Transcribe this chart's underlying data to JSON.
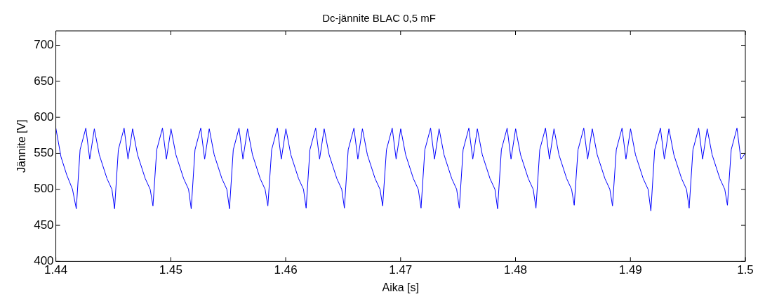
{
  "chart_data": {
    "type": "line",
    "title": "Dc-jännite BLAC 0,5 mF",
    "xlabel": "Aika [s]",
    "ylabel": "Jännite [V]",
    "xlim": [
      1.44,
      1.5
    ],
    "xticks": [
      1.44,
      1.45,
      1.46,
      1.47,
      1.48,
      1.49,
      1.5
    ],
    "ylim": [
      400,
      720
    ],
    "yticks": [
      400,
      450,
      500,
      550,
      600,
      650,
      700
    ],
    "grid": false,
    "legend": false,
    "marker": "none",
    "line_style": "solid",
    "series": [
      {
        "color": "#0000ff",
        "x": [
          1.44,
          1.44045,
          1.44095,
          1.44145,
          1.44178,
          1.44211,
          1.44261,
          1.44295,
          1.44335,
          1.44378,
          1.44445,
          1.44488,
          1.44511,
          1.44544,
          1.44594,
          1.44628,
          1.44668,
          1.44711,
          1.44778,
          1.44821,
          1.44845,
          1.44878,
          1.44928,
          1.44962,
          1.45002,
          1.45045,
          1.45112,
          1.45155,
          1.45178,
          1.45211,
          1.45261,
          1.45295,
          1.45335,
          1.45378,
          1.45445,
          1.45488,
          1.45511,
          1.45544,
          1.45594,
          1.45628,
          1.45668,
          1.45711,
          1.45778,
          1.45821,
          1.45845,
          1.45878,
          1.45928,
          1.45962,
          1.46002,
          1.46045,
          1.46112,
          1.46155,
          1.46178,
          1.46211,
          1.46261,
          1.46295,
          1.46335,
          1.46378,
          1.46445,
          1.46488,
          1.46511,
          1.46544,
          1.46594,
          1.46628,
          1.46668,
          1.46711,
          1.46778,
          1.46821,
          1.46844,
          1.46877,
          1.46927,
          1.46961,
          1.47001,
          1.47044,
          1.47111,
          1.47154,
          1.47178,
          1.47211,
          1.47261,
          1.47295,
          1.47335,
          1.47378,
          1.47445,
          1.47488,
          1.47511,
          1.47544,
          1.47594,
          1.47628,
          1.47668,
          1.47711,
          1.47778,
          1.47821,
          1.47844,
          1.47877,
          1.47927,
          1.47961,
          1.48001,
          1.48044,
          1.48111,
          1.48154,
          1.48178,
          1.48211,
          1.48261,
          1.48295,
          1.48335,
          1.48378,
          1.48445,
          1.48488,
          1.48511,
          1.48544,
          1.48594,
          1.48628,
          1.48668,
          1.48711,
          1.48778,
          1.48821,
          1.48844,
          1.48877,
          1.48927,
          1.48961,
          1.49001,
          1.49044,
          1.49111,
          1.49154,
          1.49178,
          1.49211,
          1.49261,
          1.49295,
          1.49335,
          1.49378,
          1.49445,
          1.49488,
          1.49511,
          1.49544,
          1.49594,
          1.49628,
          1.49668,
          1.49711,
          1.49778,
          1.49821,
          1.49844,
          1.49877,
          1.49927,
          1.49961,
          1.5
        ],
        "values": [
          585,
          545,
          520,
          500,
          473,
          555,
          585,
          542,
          584,
          548,
          515,
          500,
          473,
          555,
          585,
          542,
          584,
          548,
          515,
          500,
          477,
          555,
          585,
          542,
          584,
          548,
          515,
          500,
          473,
          555,
          585,
          542,
          584,
          548,
          515,
          500,
          473,
          555,
          585,
          542,
          584,
          548,
          515,
          500,
          477,
          555,
          585,
          542,
          584,
          548,
          515,
          500,
          474,
          555,
          585,
          542,
          584,
          548,
          515,
          500,
          474,
          555,
          585,
          542,
          584,
          548,
          515,
          500,
          477,
          555,
          585,
          542,
          584,
          548,
          515,
          500,
          474,
          555,
          585,
          542,
          584,
          548,
          515,
          500,
          474,
          555,
          585,
          542,
          584,
          548,
          515,
          500,
          473,
          555,
          585,
          542,
          584,
          548,
          515,
          500,
          474,
          555,
          585,
          542,
          584,
          548,
          515,
          500,
          478,
          555,
          585,
          542,
          584,
          548,
          515,
          500,
          477,
          555,
          585,
          542,
          584,
          548,
          515,
          500,
          470,
          555,
          585,
          542,
          584,
          548,
          515,
          500,
          474,
          555,
          585,
          542,
          584,
          548,
          515,
          500,
          478,
          555,
          585,
          542,
          550
        ]
      }
    ]
  }
}
